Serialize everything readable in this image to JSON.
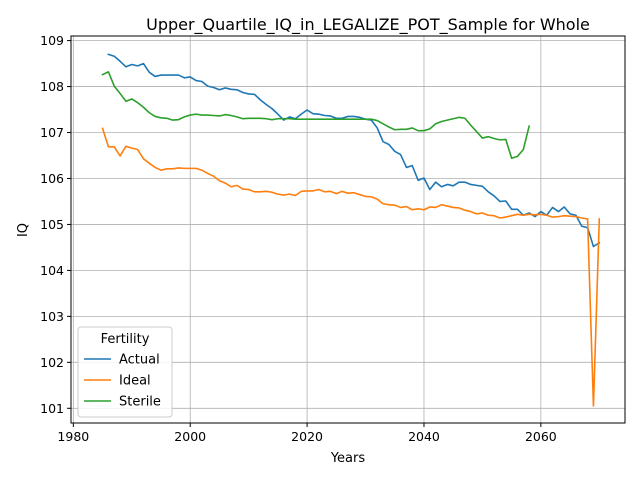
{
  "chart_data": {
    "type": "line",
    "title": "Upper_Quartile_IQ_in_LEGALIZE_POT_Sample for Whole",
    "xlabel": "Years",
    "ylabel": "IQ",
    "xlim": [
      1979.6,
      2074.4
    ],
    "ylim": [
      100.68,
      109.1
    ],
    "xticks": [
      1980,
      2000,
      2020,
      2040,
      2060
    ],
    "xtick_labels": [
      "1980",
      "2000",
      "2020",
      "2040",
      "2060"
    ],
    "yticks": [
      101,
      102,
      103,
      104,
      105,
      106,
      107,
      108,
      109
    ],
    "ytick_labels": [
      "101",
      "102",
      "103",
      "104",
      "105",
      "106",
      "107",
      "108",
      "109"
    ],
    "grid": true,
    "legend": {
      "title": "Fertility",
      "placement": "lower-left",
      "entries": [
        "Actual",
        "Ideal",
        "Sterile"
      ]
    },
    "series": [
      {
        "name": "Actual",
        "color": "#1f77b4",
        "points": [
          [
            1986,
            108.7
          ],
          [
            1987,
            108.66
          ],
          [
            1988,
            108.55
          ],
          [
            1989,
            108.43
          ],
          [
            1990,
            108.48
          ],
          [
            1991,
            108.45
          ],
          [
            1992,
            108.5
          ],
          [
            1993,
            108.31
          ],
          [
            1994,
            108.22
          ],
          [
            1995,
            108.25
          ],
          [
            1996,
            108.25
          ],
          [
            1997,
            108.25
          ],
          [
            1998,
            108.25
          ],
          [
            1999,
            108.19
          ],
          [
            2000,
            108.21
          ],
          [
            2001,
            108.13
          ],
          [
            2002,
            108.11
          ],
          [
            2003,
            108.01
          ],
          [
            2004,
            107.98
          ],
          [
            2005,
            107.93
          ],
          [
            2006,
            107.97
          ],
          [
            2007,
            107.94
          ],
          [
            2008,
            107.93
          ],
          [
            2009,
            107.87
          ],
          [
            2010,
            107.84
          ],
          [
            2011,
            107.83
          ],
          [
            2012,
            107.71
          ],
          [
            2013,
            107.61
          ],
          [
            2014,
            107.52
          ],
          [
            2015,
            107.4
          ],
          [
            2016,
            107.27
          ],
          [
            2017,
            107.34
          ],
          [
            2018,
            107.3
          ],
          [
            2019,
            107.4
          ],
          [
            2020,
            107.49
          ],
          [
            2021,
            107.41
          ],
          [
            2022,
            107.4
          ],
          [
            2023,
            107.37
          ],
          [
            2024,
            107.36
          ],
          [
            2025,
            107.31
          ],
          [
            2026,
            107.31
          ],
          [
            2027,
            107.35
          ],
          [
            2028,
            107.35
          ],
          [
            2029,
            107.33
          ],
          [
            2030,
            107.29
          ],
          [
            2031,
            107.27
          ],
          [
            2032,
            107.1
          ],
          [
            2033,
            106.8
          ],
          [
            2034,
            106.74
          ],
          [
            2035,
            106.59
          ],
          [
            2036,
            106.52
          ],
          [
            2037,
            106.24
          ],
          [
            2038,
            106.28
          ],
          [
            2039,
            105.96
          ],
          [
            2040,
            106.01
          ],
          [
            2041,
            105.76
          ],
          [
            2042,
            105.92
          ],
          [
            2043,
            105.82
          ],
          [
            2044,
            105.87
          ],
          [
            2045,
            105.84
          ],
          [
            2046,
            105.92
          ],
          [
            2047,
            105.92
          ],
          [
            2048,
            105.87
          ],
          [
            2049,
            105.85
          ],
          [
            2050,
            105.83
          ],
          [
            2051,
            105.71
          ],
          [
            2052,
            105.62
          ],
          [
            2053,
            105.5
          ],
          [
            2054,
            105.51
          ],
          [
            2055,
            105.33
          ],
          [
            2056,
            105.33
          ],
          [
            2057,
            105.2
          ],
          [
            2058,
            105.25
          ],
          [
            2059,
            105.17
          ],
          [
            2060,
            105.28
          ],
          [
            2061,
            105.2
          ],
          [
            2062,
            105.37
          ],
          [
            2063,
            105.28
          ],
          [
            2064,
            105.38
          ],
          [
            2065,
            105.23
          ],
          [
            2066,
            105.2
          ],
          [
            2067,
            104.96
          ],
          [
            2068,
            104.93
          ],
          [
            2069,
            104.52
          ],
          [
            2070,
            104.6
          ]
        ]
      },
      {
        "name": "Ideal",
        "color": "#ff7f0e",
        "points": [
          [
            1985,
            107.09
          ],
          [
            1986,
            106.69
          ],
          [
            1987,
            106.69
          ],
          [
            1988,
            106.49
          ],
          [
            1989,
            106.7
          ],
          [
            1990,
            106.66
          ],
          [
            1991,
            106.63
          ],
          [
            1992,
            106.43
          ],
          [
            1993,
            106.33
          ],
          [
            1994,
            106.24
          ],
          [
            1995,
            106.18
          ],
          [
            1996,
            106.21
          ],
          [
            1997,
            106.21
          ],
          [
            1998,
            106.23
          ],
          [
            1999,
            106.22
          ],
          [
            2000,
            106.22
          ],
          [
            2001,
            106.22
          ],
          [
            2002,
            106.18
          ],
          [
            2003,
            106.11
          ],
          [
            2004,
            106.05
          ],
          [
            2005,
            105.95
          ],
          [
            2006,
            105.9
          ],
          [
            2007,
            105.82
          ],
          [
            2008,
            105.85
          ],
          [
            2009,
            105.77
          ],
          [
            2010,
            105.76
          ],
          [
            2011,
            105.71
          ],
          [
            2012,
            105.71
          ],
          [
            2013,
            105.72
          ],
          [
            2014,
            105.7
          ],
          [
            2015,
            105.66
          ],
          [
            2016,
            105.64
          ],
          [
            2017,
            105.66
          ],
          [
            2018,
            105.63
          ],
          [
            2019,
            105.72
          ],
          [
            2020,
            105.73
          ],
          [
            2021,
            105.73
          ],
          [
            2022,
            105.76
          ],
          [
            2023,
            105.71
          ],
          [
            2024,
            105.72
          ],
          [
            2025,
            105.67
          ],
          [
            2026,
            105.72
          ],
          [
            2027,
            105.68
          ],
          [
            2028,
            105.69
          ],
          [
            2029,
            105.65
          ],
          [
            2030,
            105.61
          ],
          [
            2031,
            105.6
          ],
          [
            2032,
            105.55
          ],
          [
            2033,
            105.45
          ],
          [
            2034,
            105.43
          ],
          [
            2035,
            105.42
          ],
          [
            2036,
            105.37
          ],
          [
            2037,
            105.39
          ],
          [
            2038,
            105.32
          ],
          [
            2039,
            105.34
          ],
          [
            2040,
            105.32
          ],
          [
            2041,
            105.38
          ],
          [
            2042,
            105.37
          ],
          [
            2043,
            105.43
          ],
          [
            2044,
            105.4
          ],
          [
            2045,
            105.37
          ],
          [
            2046,
            105.36
          ],
          [
            2047,
            105.31
          ],
          [
            2048,
            105.28
          ],
          [
            2049,
            105.23
          ],
          [
            2050,
            105.25
          ],
          [
            2051,
            105.2
          ],
          [
            2052,
            105.19
          ],
          [
            2053,
            105.14
          ],
          [
            2054,
            105.16
          ],
          [
            2055,
            105.19
          ],
          [
            2056,
            105.22
          ],
          [
            2057,
            105.2
          ],
          [
            2058,
            105.22
          ],
          [
            2059,
            105.21
          ],
          [
            2060,
            105.22
          ],
          [
            2061,
            105.2
          ],
          [
            2062,
            105.16
          ],
          [
            2063,
            105.17
          ],
          [
            2064,
            105.19
          ],
          [
            2065,
            105.18
          ],
          [
            2066,
            105.17
          ],
          [
            2067,
            105.14
          ],
          [
            2068,
            105.12
          ],
          [
            2069,
            101.05
          ],
          [
            2070,
            105.12
          ]
        ]
      },
      {
        "name": "Sterile",
        "color": "#2ca02c",
        "points": [
          [
            1985,
            108.26
          ],
          [
            1986,
            108.32
          ],
          [
            1987,
            108.01
          ],
          [
            1988,
            107.85
          ],
          [
            1989,
            107.68
          ],
          [
            1990,
            107.73
          ],
          [
            1991,
            107.65
          ],
          [
            1992,
            107.55
          ],
          [
            1993,
            107.43
          ],
          [
            1994,
            107.35
          ],
          [
            1995,
            107.32
          ],
          [
            1996,
            107.31
          ],
          [
            1997,
            107.27
          ],
          [
            1998,
            107.28
          ],
          [
            1999,
            107.34
          ],
          [
            2000,
            107.38
          ],
          [
            2001,
            107.4
          ],
          [
            2002,
            107.38
          ],
          [
            2003,
            107.38
          ],
          [
            2004,
            107.37
          ],
          [
            2005,
            107.36
          ],
          [
            2006,
            107.39
          ],
          [
            2007,
            107.37
          ],
          [
            2008,
            107.34
          ],
          [
            2009,
            107.3
          ],
          [
            2010,
            107.31
          ],
          [
            2011,
            107.31
          ],
          [
            2012,
            107.31
          ],
          [
            2013,
            107.3
          ],
          [
            2014,
            107.28
          ],
          [
            2015,
            107.3
          ],
          [
            2016,
            107.3
          ],
          [
            2017,
            107.3
          ],
          [
            2018,
            107.29
          ],
          [
            2019,
            107.29
          ],
          [
            2020,
            107.29
          ],
          [
            2021,
            107.29
          ],
          [
            2022,
            107.29
          ],
          [
            2023,
            107.29
          ],
          [
            2024,
            107.29
          ],
          [
            2025,
            107.29
          ],
          [
            2026,
            107.29
          ],
          [
            2027,
            107.29
          ],
          [
            2028,
            107.29
          ],
          [
            2029,
            107.29
          ],
          [
            2030,
            107.29
          ],
          [
            2031,
            107.29
          ],
          [
            2032,
            107.26
          ],
          [
            2033,
            107.19
          ],
          [
            2034,
            107.12
          ],
          [
            2035,
            107.06
          ],
          [
            2036,
            107.07
          ],
          [
            2037,
            107.07
          ],
          [
            2038,
            107.1
          ],
          [
            2039,
            107.04
          ],
          [
            2040,
            107.04
          ],
          [
            2041,
            107.08
          ],
          [
            2042,
            107.19
          ],
          [
            2043,
            107.24
          ],
          [
            2044,
            107.27
          ],
          [
            2045,
            107.3
          ],
          [
            2046,
            107.33
          ],
          [
            2047,
            107.31
          ],
          [
            2048,
            107.16
          ],
          [
            2049,
            107.02
          ],
          [
            2050,
            106.88
          ],
          [
            2051,
            106.91
          ],
          [
            2052,
            106.87
          ],
          [
            2053,
            106.84
          ],
          [
            2054,
            106.85
          ],
          [
            2055,
            106.44
          ],
          [
            2056,
            106.48
          ],
          [
            2057,
            106.63
          ],
          [
            2058,
            107.14
          ]
        ]
      }
    ]
  }
}
